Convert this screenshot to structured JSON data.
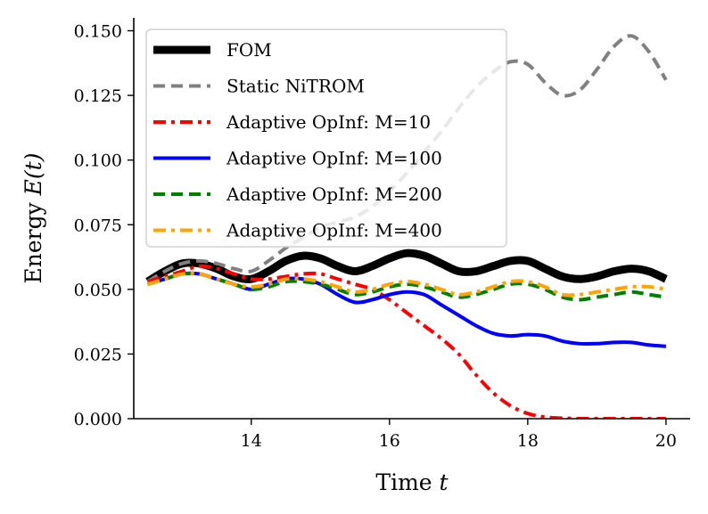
{
  "chart_data": {
    "type": "line",
    "xlabel": "Time t",
    "ylabel": "Energy E(t)",
    "xlim": [
      12.3,
      20.35
    ],
    "ylim": [
      0.0,
      0.155
    ],
    "xticks": [
      14,
      16,
      18,
      20
    ],
    "yticks": [
      0.0,
      0.025,
      0.05,
      0.075,
      0.1,
      0.125,
      0.15
    ],
    "xtick_labels": [
      "14",
      "16",
      "18",
      "20"
    ],
    "ytick_labels": [
      "0.000",
      "0.025",
      "0.050",
      "0.075",
      "0.100",
      "0.125",
      "0.150"
    ],
    "grid": false,
    "legend_position": "top-left",
    "series": [
      {
        "name": "FOM",
        "color": "#000000",
        "style": "solid",
        "x": [
          12.5,
          12.75,
          13.0,
          13.25,
          13.5,
          13.75,
          14.0,
          14.25,
          14.5,
          14.75,
          15.0,
          15.25,
          15.5,
          15.75,
          16.0,
          16.25,
          16.5,
          16.75,
          17.0,
          17.25,
          17.5,
          17.75,
          18.0,
          18.25,
          18.5,
          18.75,
          19.0,
          19.25,
          19.5,
          19.75,
          20.0
        ],
        "values": [
          0.053,
          0.057,
          0.06,
          0.06,
          0.058,
          0.055,
          0.054,
          0.057,
          0.061,
          0.063,
          0.062,
          0.059,
          0.057,
          0.059,
          0.062,
          0.064,
          0.063,
          0.06,
          0.057,
          0.057,
          0.059,
          0.061,
          0.061,
          0.058,
          0.055,
          0.054,
          0.055,
          0.057,
          0.058,
          0.057,
          0.054
        ]
      },
      {
        "name": "Static NiTROM",
        "color": "#808080",
        "style": "dashed",
        "x": [
          12.5,
          12.75,
          13.0,
          13.25,
          13.5,
          13.75,
          14.0,
          14.25,
          14.5,
          14.75,
          15.0,
          15.25,
          15.5,
          15.75,
          16.0,
          16.25,
          16.5,
          16.75,
          17.0,
          17.25,
          17.5,
          17.75,
          18.0,
          18.25,
          18.5,
          18.75,
          19.0,
          19.25,
          19.5,
          19.75,
          20.0
        ],
        "values": [
          0.053,
          0.057,
          0.06,
          0.061,
          0.06,
          0.058,
          0.057,
          0.061,
          0.066,
          0.07,
          0.074,
          0.076,
          0.078,
          0.082,
          0.088,
          0.095,
          0.103,
          0.111,
          0.12,
          0.128,
          0.134,
          0.138,
          0.137,
          0.13,
          0.125,
          0.127,
          0.135,
          0.144,
          0.148,
          0.142,
          0.131
        ]
      },
      {
        "name": "Adaptive OpInf: M=10",
        "color": "#ff0000",
        "style": "dashdot",
        "x": [
          12.5,
          12.75,
          13.0,
          13.25,
          13.5,
          13.75,
          14.0,
          14.25,
          14.5,
          14.75,
          15.0,
          15.25,
          15.5,
          15.75,
          16.0,
          16.25,
          16.5,
          16.75,
          17.0,
          17.25,
          17.5,
          17.75,
          18.0,
          18.25,
          18.5,
          18.75,
          19.0,
          19.25,
          19.5,
          19.75,
          20.0
        ],
        "values": [
          0.053,
          0.055,
          0.057,
          0.059,
          0.058,
          0.056,
          0.054,
          0.054,
          0.055,
          0.056,
          0.056,
          0.054,
          0.052,
          0.05,
          0.046,
          0.041,
          0.036,
          0.031,
          0.025,
          0.017,
          0.01,
          0.005,
          0.002,
          0.0006,
          0.0002,
          0.0,
          0.0,
          0.0,
          0.0,
          0.0,
          0.0
        ]
      },
      {
        "name": "Adaptive OpInf: M=100",
        "color": "#0000ff",
        "style": "solid",
        "x": [
          12.5,
          12.75,
          13.0,
          13.25,
          13.5,
          13.75,
          14.0,
          14.25,
          14.5,
          14.75,
          15.0,
          15.25,
          15.5,
          15.75,
          16.0,
          16.25,
          16.5,
          16.75,
          17.0,
          17.25,
          17.5,
          17.75,
          18.0,
          18.25,
          18.5,
          18.75,
          19.0,
          19.25,
          19.5,
          19.75,
          20.0
        ],
        "values": [
          0.052,
          0.054,
          0.056,
          0.056,
          0.054,
          0.052,
          0.05,
          0.052,
          0.054,
          0.054,
          0.052,
          0.048,
          0.045,
          0.046,
          0.048,
          0.049,
          0.048,
          0.044,
          0.04,
          0.036,
          0.033,
          0.032,
          0.0325,
          0.032,
          0.03,
          0.029,
          0.029,
          0.0295,
          0.0295,
          0.0285,
          0.028
        ]
      },
      {
        "name": "Adaptive OpInf: M=200",
        "color": "#008000",
        "style": "dashed",
        "x": [
          12.5,
          12.75,
          13.0,
          13.25,
          13.5,
          13.75,
          14.0,
          14.25,
          14.5,
          14.75,
          15.0,
          15.25,
          15.5,
          15.75,
          16.0,
          16.25,
          16.5,
          16.75,
          17.0,
          17.25,
          17.5,
          17.75,
          18.0,
          18.25,
          18.5,
          18.75,
          19.0,
          19.25,
          19.5,
          19.75,
          20.0
        ],
        "values": [
          0.052,
          0.054,
          0.056,
          0.056,
          0.054,
          0.052,
          0.05,
          0.051,
          0.053,
          0.053,
          0.052,
          0.05,
          0.048,
          0.049,
          0.051,
          0.052,
          0.051,
          0.049,
          0.047,
          0.048,
          0.05,
          0.052,
          0.052,
          0.05,
          0.047,
          0.046,
          0.047,
          0.048,
          0.049,
          0.048,
          0.047
        ]
      },
      {
        "name": "Adaptive OpInf: M=400",
        "color": "#ffa500",
        "style": "dashdot",
        "x": [
          12.5,
          12.75,
          13.0,
          13.25,
          13.5,
          13.75,
          14.0,
          14.25,
          14.5,
          14.75,
          15.0,
          15.25,
          15.5,
          15.75,
          16.0,
          16.25,
          16.5,
          16.75,
          17.0,
          17.25,
          17.5,
          17.75,
          18.0,
          18.25,
          18.5,
          18.75,
          19.0,
          19.25,
          19.5,
          19.75,
          20.0
        ],
        "values": [
          0.052,
          0.054,
          0.056,
          0.056,
          0.054,
          0.052,
          0.051,
          0.052,
          0.054,
          0.054,
          0.053,
          0.051,
          0.049,
          0.05,
          0.052,
          0.053,
          0.052,
          0.05,
          0.048,
          0.049,
          0.051,
          0.053,
          0.053,
          0.051,
          0.048,
          0.048,
          0.049,
          0.05,
          0.051,
          0.051,
          0.05
        ]
      }
    ]
  }
}
